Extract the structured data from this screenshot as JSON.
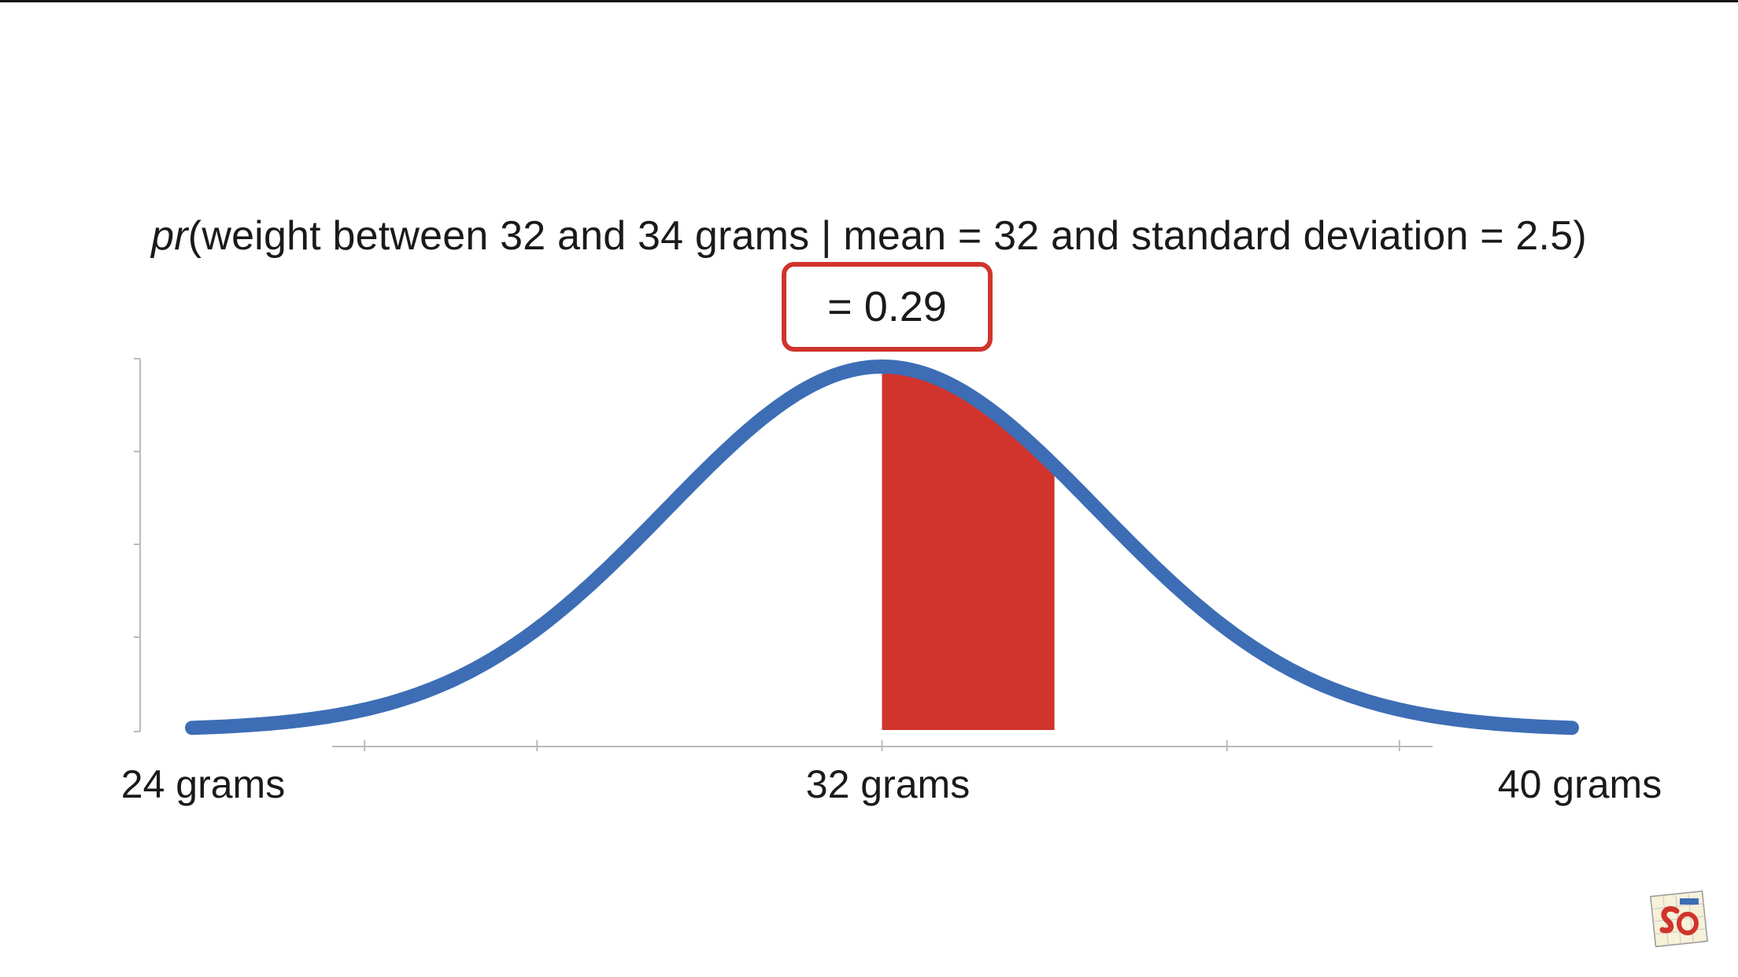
{
  "formula": {
    "pr": "pr",
    "rest": "(weight between 32 and 34 grams | mean = 32 and standard deviation = 2.5)"
  },
  "result": "= 0.29",
  "chart_data": {
    "type": "area",
    "distribution": "normal",
    "mean": 32,
    "sd": 2.5,
    "xlim": [
      24,
      40
    ],
    "shaded_range": [
      32,
      34
    ],
    "shaded_probability": 0.29,
    "tick_labels": [
      {
        "x": 24,
        "label": "24 grams"
      },
      {
        "x": 32,
        "label": "32 grams"
      },
      {
        "x": 40,
        "label": "40 grams"
      }
    ],
    "x_minor_ticks": [
      26,
      28,
      32,
      36,
      38
    ],
    "colors": {
      "curve": "#3d6db5",
      "shade": "#d0342c",
      "box": "#d0342c",
      "axis": "#bbbbbb"
    }
  }
}
